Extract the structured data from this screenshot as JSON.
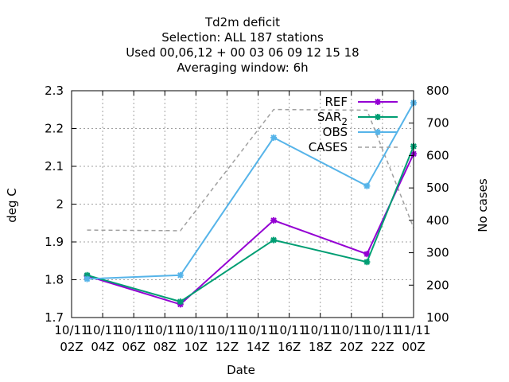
{
  "chart_data": {
    "type": "line",
    "title_lines": [
      "Td2m deficit",
      "Selection: ALL     187 stations",
      "Used  00,06,12  + 00 03 06 09 12 15 18",
      "Averaging window:  6h"
    ],
    "xlabel": "Date",
    "ylabel": "deg C",
    "y2label": "No cases",
    "x_ticks": [
      [
        "10/11",
        "02Z"
      ],
      [
        "10/11",
        "04Z"
      ],
      [
        "10/11",
        "06Z"
      ],
      [
        "10/11",
        "08Z"
      ],
      [
        "10/11",
        "10Z"
      ],
      [
        "10/11",
        "12Z"
      ],
      [
        "10/11",
        "14Z"
      ],
      [
        "10/11",
        "16Z"
      ],
      [
        "10/11",
        "18Z"
      ],
      [
        "10/11",
        "20Z"
      ],
      [
        "10/11",
        "22Z"
      ],
      [
        "11/11",
        "00Z"
      ]
    ],
    "x_hours": [
      2,
      4,
      6,
      8,
      10,
      12,
      14,
      16,
      18,
      20,
      22,
      24
    ],
    "xlim": [
      2,
      24
    ],
    "ylim": [
      1.7,
      2.3
    ],
    "yticks": [
      1.7,
      1.8,
      1.9,
      2,
      2.1,
      2.2,
      2.3
    ],
    "ytick_labels": [
      "1.7",
      "1.8",
      "1.9",
      "2",
      "2.1",
      "2.2",
      "2.3"
    ],
    "y2lim": [
      100,
      800
    ],
    "y2ticks": [
      100,
      200,
      300,
      400,
      500,
      600,
      700,
      800
    ],
    "y2tick_labels": [
      "100",
      "200",
      "300",
      "400",
      "500",
      "600",
      "700",
      "800"
    ],
    "grid": true,
    "legend_position": "top-right",
    "series": [
      {
        "name": "REF",
        "color": "#9400d3",
        "axis": "left",
        "marker": true,
        "x": [
          3,
          9,
          15,
          21,
          24
        ],
        "y": [
          1.81,
          1.735,
          1.957,
          1.868,
          2.133
        ]
      },
      {
        "name": "SAR",
        "name_sub": "2",
        "color": "#009e73",
        "axis": "left",
        "marker": true,
        "x": [
          3,
          9,
          15,
          21,
          24
        ],
        "y": [
          1.812,
          1.742,
          1.905,
          1.847,
          2.153
        ]
      },
      {
        "name": "OBS",
        "color": "#56b4e9",
        "axis": "left",
        "marker": true,
        "x": [
          3,
          9,
          15,
          21,
          24
        ],
        "y": [
          1.802,
          1.812,
          2.176,
          2.048,
          2.268
        ]
      },
      {
        "name": "CASES",
        "color": "#a0a0a0",
        "axis": "right",
        "marker": false,
        "dashed": true,
        "x": [
          3,
          9,
          15,
          21,
          24
        ],
        "y": [
          370,
          368,
          742,
          740,
          377
        ]
      }
    ]
  }
}
